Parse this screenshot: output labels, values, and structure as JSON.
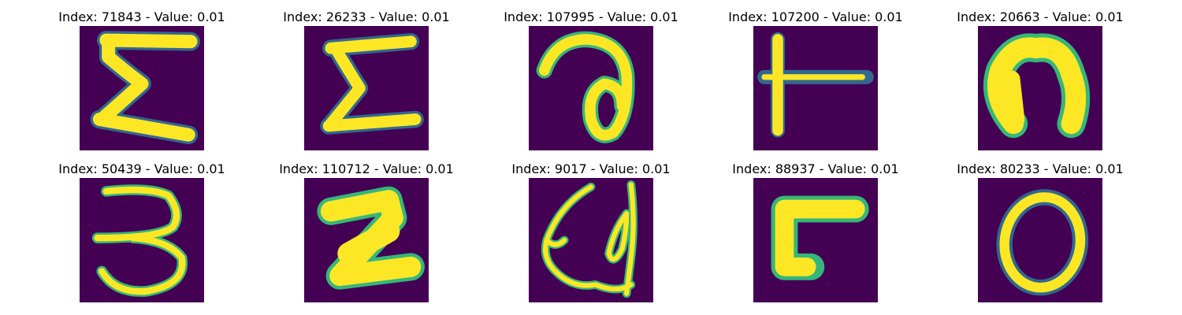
{
  "colors": {
    "background": "#440154",
    "low": "#31688e",
    "mid": "#35b779",
    "high": "#fde725"
  },
  "panels": [
    {
      "title": "Index: 71843 - Value: 0.01",
      "glyph": "sigma-shape-icon"
    },
    {
      "title": "Index: 26233 - Value: 0.01",
      "glyph": "sigma-shape-icon"
    },
    {
      "title": "Index: 107995 - Value: 0.01",
      "glyph": "curl-a-shape-icon"
    },
    {
      "title": "Index: 107200 - Value: 0.01",
      "glyph": "t-bar-shape-icon"
    },
    {
      "title": "Index: 20663 - Value: 0.01",
      "glyph": "arch-shape-icon"
    },
    {
      "title": "Index: 50439 - Value: 0.01",
      "glyph": "three-shape-icon"
    },
    {
      "title": "Index: 110712 - Value: 0.01",
      "glyph": "z-block-shape-icon"
    },
    {
      "title": "Index: 9017 - Value: 0.01",
      "glyph": "loop-shape-icon"
    },
    {
      "title": "Index: 88937 - Value: 0.01",
      "glyph": "l-shape-icon"
    },
    {
      "title": "Index: 80233 - Value: 0.01",
      "glyph": "o-ring-shape-icon"
    }
  ]
}
